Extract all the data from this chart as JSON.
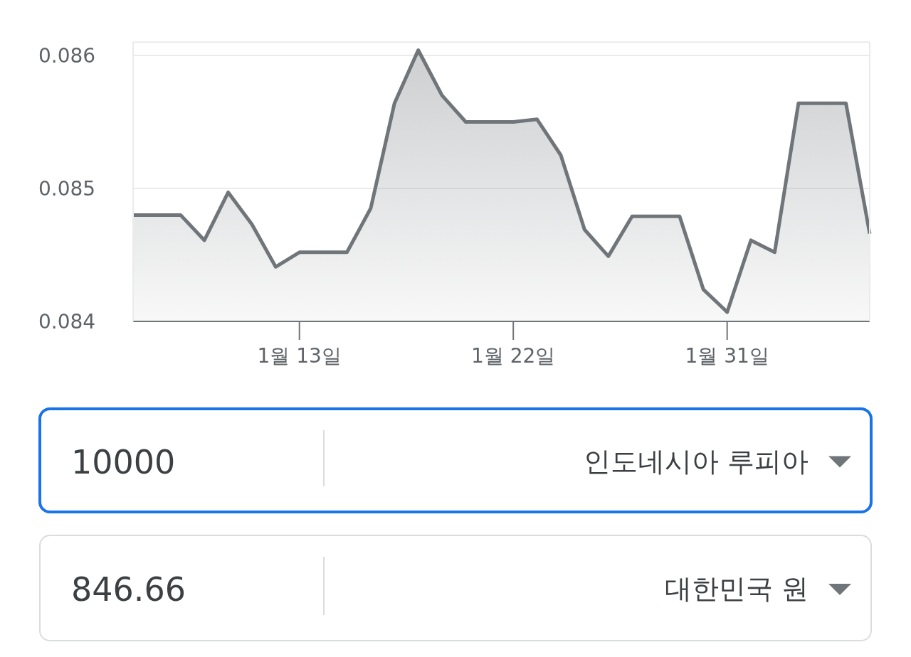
{
  "chart_data": {
    "type": "area",
    "color": "#70757a",
    "x": [
      "--01-06",
      "--01-08",
      "--01-09",
      "--01-10",
      "--01-11",
      "--01-12",
      "--01-13",
      "--01-14",
      "--01-15",
      "--01-16",
      "--01-17",
      "--01-18",
      "--01-19",
      "--01-20",
      "--01-21",
      "--01-22",
      "--01-23",
      "--01-24",
      "--01-25",
      "--01-26",
      "--01-27",
      "--01-28",
      "--01-29",
      "--01-30",
      "--01-31",
      "--02-01",
      "--02-02",
      "--02-03",
      "--02-04",
      "--02-05",
      "--02-06"
    ],
    "values": [
      0.0848,
      0.0848,
      0.08461,
      0.08497,
      0.08473,
      0.08441,
      0.08452,
      0.08452,
      0.08452,
      0.08485,
      0.08564,
      0.08604,
      0.0857,
      0.0855,
      0.0855,
      0.0855,
      0.08552,
      0.08525,
      0.08469,
      0.08449,
      0.08479,
      0.08479,
      0.08479,
      0.08424,
      0.08407,
      0.08461,
      0.08452,
      0.08564,
      0.08564,
      0.08564,
      0.08466
    ],
    "xlim": [
      "--01-06",
      "--02-06"
    ],
    "xticks": [
      {
        "value": "--01-13",
        "label": "1월 13일"
      },
      {
        "value": "--01-22",
        "label": "1월 22일"
      },
      {
        "value": "--01-31",
        "label": "1월 31일"
      }
    ],
    "ylim": [
      0.084,
      0.0861
    ],
    "yticks": [
      0.084,
      0.085,
      0.086
    ],
    "grid": "y",
    "annotations": [
      "10000",
      "인도네시아 루피아",
      "846.66",
      "대한민국 원"
    ]
  }
}
